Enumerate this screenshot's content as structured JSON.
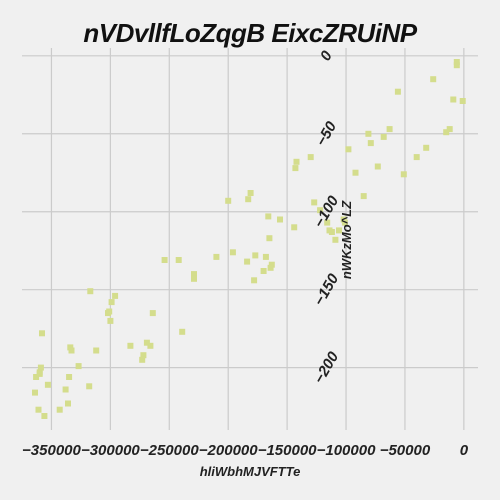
{
  "chart_data": {
    "type": "scatter",
    "title": "nVDvllfLoZqgB EixcZRUiNP",
    "xlabel": "hliWbhMJVFTTe",
    "ylabel": "nWKzMo^LZ",
    "xlim": [
      -375000,
      12000
    ],
    "ylim": [
      -240,
      5
    ],
    "xticks": [
      -350000,
      -300000,
      -250000,
      -200000,
      -150000,
      -100000,
      -50000,
      0
    ],
    "xtick_labels": [
      "−350000",
      "−300000",
      "−250000",
      "−200000",
      "−150000",
      "−100000",
      "−50000",
      "0"
    ],
    "yticks": [
      0,
      -50,
      -100,
      -150,
      -200
    ],
    "ytick_labels": [
      "0",
      "−50",
      "−100",
      "−150",
      "−200"
    ],
    "grid": true,
    "color": "#d4dd8c",
    "points": [
      [
        -6000,
        -4
      ],
      [
        -6000,
        -6
      ],
      [
        -1000,
        -29
      ],
      [
        -9000,
        -28
      ],
      [
        -12000,
        -47
      ],
      [
        -15000,
        -49
      ],
      [
        -26000,
        -15
      ],
      [
        -32000,
        -59
      ],
      [
        -40000,
        -65
      ],
      [
        -51000,
        -76
      ],
      [
        -56000,
        -23
      ],
      [
        -63000,
        -47
      ],
      [
        -68000,
        -52
      ],
      [
        -73000,
        -71
      ],
      [
        -79000,
        -56
      ],
      [
        -81000,
        -50
      ],
      [
        -85000,
        -90
      ],
      [
        -92000,
        -75
      ],
      [
        -98000,
        -60
      ],
      [
        -101000,
        -107
      ],
      [
        -102000,
        -105
      ],
      [
        -106000,
        -112
      ],
      [
        -109000,
        -118
      ],
      [
        -112000,
        -113
      ],
      [
        -114000,
        -112
      ],
      [
        -116000,
        -107
      ],
      [
        -122000,
        -99
      ],
      [
        -127000,
        -94
      ],
      [
        -130000,
        -65
      ],
      [
        -142000,
        -68
      ],
      [
        -143000,
        -72
      ],
      [
        -144000,
        -110
      ],
      [
        -156000,
        -105
      ],
      [
        -163000,
        -134
      ],
      [
        -164000,
        -136
      ],
      [
        -165000,
        -117
      ],
      [
        -166000,
        -103
      ],
      [
        -168000,
        -129
      ],
      [
        -170000,
        -138
      ],
      [
        -177000,
        -128
      ],
      [
        -178000,
        -144
      ],
      [
        -181000,
        -88
      ],
      [
        -183000,
        -92
      ],
      [
        -184000,
        -132
      ],
      [
        -196000,
        -126
      ],
      [
        -200000,
        -93
      ],
      [
        -210000,
        -129
      ],
      [
        -229000,
        -140
      ],
      [
        -229000,
        -143
      ],
      [
        -239000,
        -177
      ],
      [
        -242000,
        -131
      ],
      [
        -254000,
        -131
      ],
      [
        -264000,
        -165
      ],
      [
        -266000,
        -186
      ],
      [
        -269000,
        -184
      ],
      [
        -272000,
        -192
      ],
      [
        -273000,
        -195
      ],
      [
        -283000,
        -186
      ],
      [
        -296000,
        -154
      ],
      [
        -299000,
        -158
      ],
      [
        -300000,
        -170
      ],
      [
        -301000,
        -164
      ],
      [
        -302000,
        -165
      ],
      [
        -312000,
        -189
      ],
      [
        -317000,
        -151
      ],
      [
        -318000,
        -212
      ],
      [
        -327000,
        -199
      ],
      [
        -333000,
        -189
      ],
      [
        -334000,
        -187
      ],
      [
        -335000,
        -206
      ],
      [
        -336000,
        -223
      ],
      [
        -338000,
        -214
      ],
      [
        -343000,
        -227
      ],
      [
        -353000,
        -211
      ],
      [
        -356000,
        -231
      ],
      [
        -358000,
        -178
      ],
      [
        -359000,
        -200
      ],
      [
        -360000,
        -203
      ],
      [
        -360000,
        -204
      ],
      [
        -361000,
        -227
      ],
      [
        -363000,
        -206
      ],
      [
        -364000,
        -216
      ]
    ]
  }
}
